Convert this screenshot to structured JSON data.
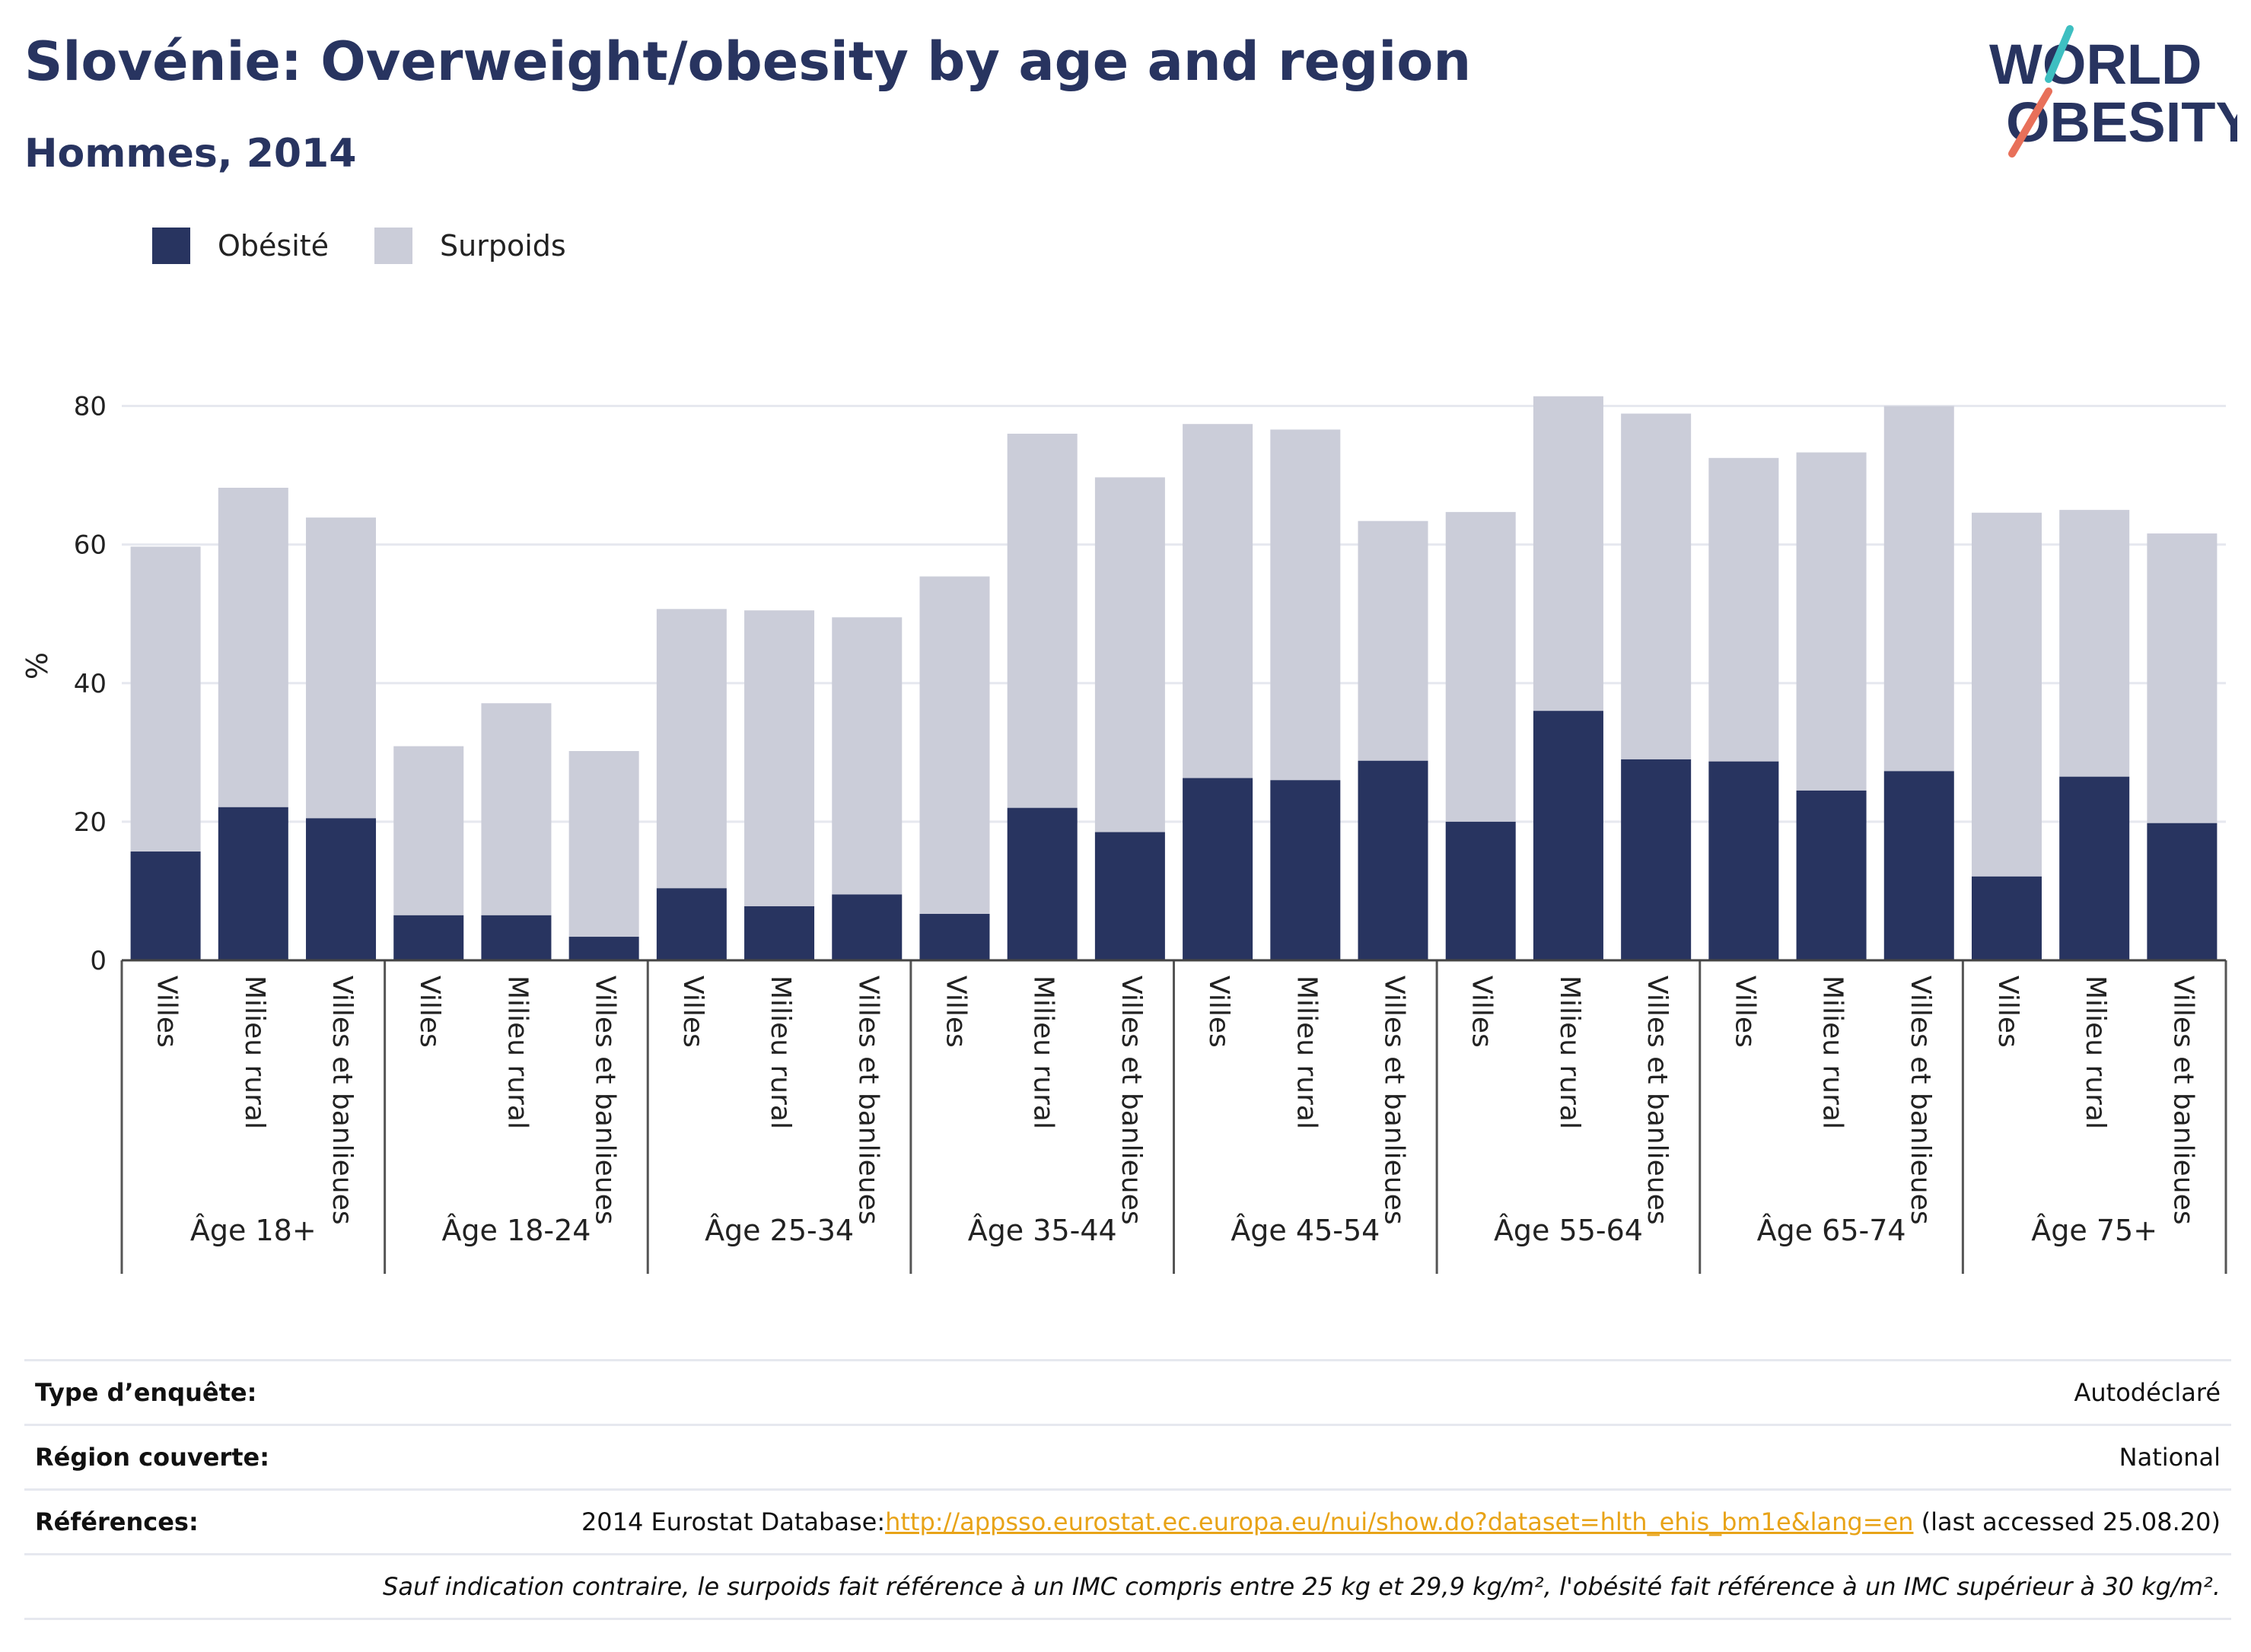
{
  "header": {
    "title": "Slovénie: Overweight/obesity by age and region",
    "subtitle": "Hommes, 2014"
  },
  "logo": {
    "line1": "WORLD",
    "line2": "OBESITY"
  },
  "colors": {
    "obesity": "#283460",
    "overweight": "#cbcdd9",
    "accent_teal": "#3ebfc1",
    "accent_coral": "#e8705a",
    "link": "#e8a317"
  },
  "chart_data": {
    "type": "bar",
    "stacked": true,
    "ylabel": "%",
    "ylim": [
      0,
      85
    ],
    "yticks": [
      0,
      20,
      40,
      60,
      80
    ],
    "grid": true,
    "legend_position": "top-left",
    "legend": [
      "Obésité",
      "Surpoids"
    ],
    "groups": [
      {
        "label": "Âge 18+",
        "bars": [
          {
            "region": "Villes",
            "obesity": 15.7,
            "total": 59.7
          },
          {
            "region": "Milieu rural",
            "obesity": 22.1,
            "total": 68.2
          },
          {
            "region": "Villes et banlieues",
            "obesity": 20.5,
            "total": 63.9
          }
        ]
      },
      {
        "label": "Âge 18-24",
        "bars": [
          {
            "region": "Villes",
            "obesity": 6.5,
            "total": 30.9
          },
          {
            "region": "Milieu rural",
            "obesity": 6.5,
            "total": 37.1
          },
          {
            "region": "Villes et banlieues",
            "obesity": 3.4,
            "total": 30.2
          }
        ]
      },
      {
        "label": "Âge 25-34",
        "bars": [
          {
            "region": "Villes",
            "obesity": 10.4,
            "total": 50.7
          },
          {
            "region": "Milieu rural",
            "obesity": 7.8,
            "total": 50.5
          },
          {
            "region": "Villes et banlieues",
            "obesity": 9.5,
            "total": 49.5
          }
        ]
      },
      {
        "label": "Âge 35-44",
        "bars": [
          {
            "region": "Villes",
            "obesity": 6.7,
            "total": 55.4
          },
          {
            "region": "Milieu rural",
            "obesity": 22.0,
            "total": 76.0
          },
          {
            "region": "Villes et banlieues",
            "obesity": 18.5,
            "total": 69.7
          }
        ]
      },
      {
        "label": "Âge 45-54",
        "bars": [
          {
            "region": "Villes",
            "obesity": 26.3,
            "total": 77.4
          },
          {
            "region": "Milieu rural",
            "obesity": 26.0,
            "total": 76.6
          },
          {
            "region": "Villes et banlieues",
            "obesity": 28.8,
            "total": 63.4
          }
        ]
      },
      {
        "label": "Âge 55-64",
        "bars": [
          {
            "region": "Villes",
            "obesity": 20.0,
            "total": 64.7
          },
          {
            "region": "Milieu rural",
            "obesity": 36.0,
            "total": 81.4
          },
          {
            "region": "Villes et banlieues",
            "obesity": 29.0,
            "total": 78.9
          }
        ]
      },
      {
        "label": "Âge 65-74",
        "bars": [
          {
            "region": "Villes",
            "obesity": 28.7,
            "total": 72.5
          },
          {
            "region": "Milieu rural",
            "obesity": 24.5,
            "total": 73.3
          },
          {
            "region": "Villes et banlieues",
            "obesity": 27.3,
            "total": 80.0
          }
        ]
      },
      {
        "label": "Âge 75+",
        "bars": [
          {
            "region": "Villes",
            "obesity": 12.1,
            "total": 64.6
          },
          {
            "region": "Milieu rural",
            "obesity": 26.5,
            "total": 65.0
          },
          {
            "region": "Villes et banlieues",
            "obesity": 19.8,
            "total": 61.6
          }
        ]
      }
    ]
  },
  "meta": {
    "survey_type_label": "Type d’enquête:",
    "survey_type_value": "Autodéclaré",
    "region_label": "Région couverte:",
    "region_value": "National",
    "references_label": "Références:",
    "references_prefix": "2014 Eurostat Database:",
    "references_link": "http://appsso.eurostat.ec.europa.eu/nui/show.do?dataset=hlth_ehis_bm1e&lang=en",
    "references_suffix": " (last accessed 25.08.20)",
    "note": "Sauf indication contraire, le surpoids fait référence à un IMC compris entre 25 kg et 29,9 kg/m², l'obésité fait référence à un IMC supérieur à 30 kg/m²."
  }
}
